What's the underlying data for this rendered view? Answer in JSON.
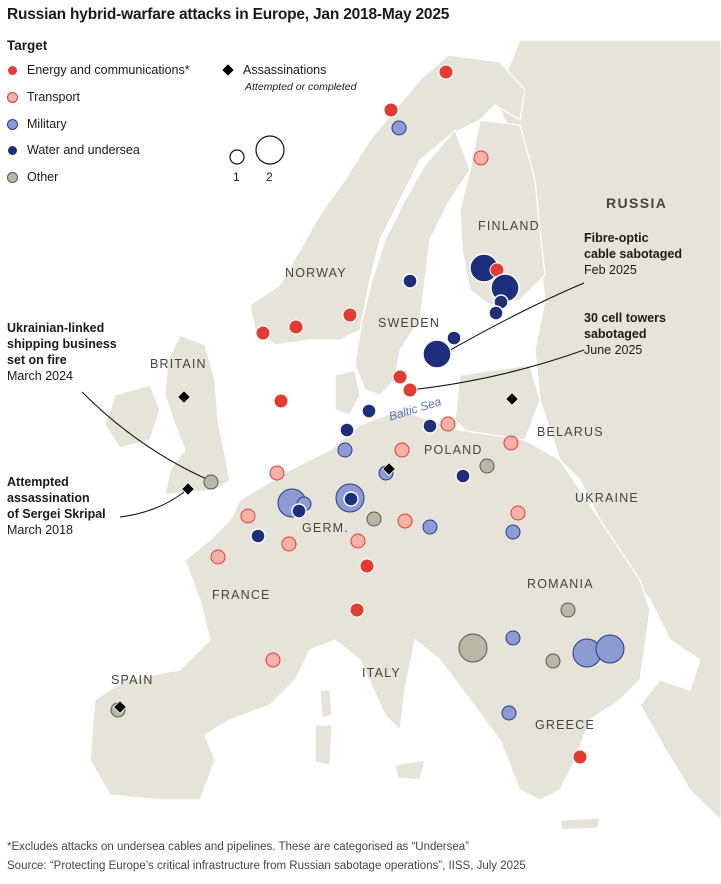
{
  "title": "Russian hybrid-warfare attacks in Europe, Jan 2018-May 2025",
  "legend": {
    "heading": "Target",
    "categories": [
      {
        "key": "energy",
        "label": "Energy and communications*",
        "color": "#e03c31"
      },
      {
        "key": "transport",
        "label": "Transport",
        "color": "#f6b2a6"
      },
      {
        "key": "military",
        "label": "Military",
        "color": "#8c9bd2"
      },
      {
        "key": "water",
        "label": "Water and undersea",
        "color": "#1f2e7a"
      },
      {
        "key": "other",
        "label": "Other",
        "color": "#b9b8a4"
      }
    ],
    "assassinations_label": "Assassinations",
    "assassinations_sub": "Attempted or completed",
    "size_values": [
      "1",
      "2"
    ]
  },
  "countries": {
    "russia": "RUSSIA",
    "finland": "FINLAND",
    "norway": "NORWAY",
    "sweden": "SWEDEN",
    "britain": "BRITAIN",
    "poland": "POLAND",
    "belarus": "BELARUS",
    "ukraine": "UKRAINE",
    "germany": "GERM.",
    "france": "FRANCE",
    "romania": "ROMANIA",
    "italy": "ITALY",
    "spain": "SPAIN",
    "greece": "GREECE"
  },
  "sea": "Baltic Sea",
  "annotations": {
    "fibre": {
      "bold": [
        "Fibre-optic",
        "cable sabotaged"
      ],
      "date": "Feb 2025"
    },
    "towers": {
      "bold": [
        "30 cell towers",
        "sabotaged"
      ],
      "date": "June 2025"
    },
    "shipping": {
      "bold": [
        "Ukrainian-linked",
        "shipping business",
        "set on fire"
      ],
      "date": "March 2024"
    },
    "skripal": {
      "bold": [
        "Attempted",
        "assassination",
        "of Sergei Skripal"
      ],
      "date": "March 2018"
    }
  },
  "footer": {
    "note": "*Excludes attacks on undersea cables and pipelines. These are categorised as “Undersea”",
    "source": "Source: “Protecting Europe’s critical infrastructure from Russian sabotage operations”, IISS, July 2025"
  },
  "map_data": {
    "attacks": [
      {
        "place": "Northern Norway",
        "category": "energy",
        "count": 1
      },
      {
        "place": "Northern Norway (coast)",
        "category": "energy",
        "count": 1
      },
      {
        "place": "Northern Norway (coast)",
        "category": "military",
        "count": 1
      },
      {
        "place": "Finnish Lapland",
        "category": "transport",
        "count": 1
      },
      {
        "place": "Gulf of Finland",
        "category": "water",
        "count": 2
      },
      {
        "place": "Helsinki",
        "category": "energy",
        "count": 1
      },
      {
        "place": "Gulf of Finland (east)",
        "category": "water",
        "count": 2
      },
      {
        "place": "Gulf of Finland (Estonia)",
        "category": "water",
        "count": 1
      },
      {
        "place": "Gulf of Finland (Estonia)",
        "category": "water",
        "count": 1
      },
      {
        "place": "Central Sweden",
        "category": "water",
        "count": 1
      },
      {
        "place": "Southern Norway (Bergen)",
        "category": "energy",
        "count": 1
      },
      {
        "place": "Southern Norway",
        "category": "energy",
        "count": 1
      },
      {
        "place": "Oslo",
        "category": "energy",
        "count": 1
      },
      {
        "place": "North Sea",
        "category": "energy",
        "count": 1
      },
      {
        "place": "Gotland",
        "category": "water",
        "count": 2
      },
      {
        "place": "Baltic Sea (Aland)",
        "category": "water",
        "count": 1
      },
      {
        "place": "Southern Sweden",
        "category": "energy",
        "count": 1
      },
      {
        "place": "Southern Sweden",
        "category": "energy",
        "count": 1
      },
      {
        "place": "Bornholm",
        "category": "water",
        "count": 1
      },
      {
        "place": "Baltic Sea (south)",
        "category": "water",
        "count": 1
      },
      {
        "place": "Denmark",
        "category": "water",
        "count": 1
      },
      {
        "place": "Lithuania",
        "category": "transport",
        "count": 1
      },
      {
        "place": "Lithuania (south)",
        "category": "transport",
        "count": 1
      },
      {
        "place": "Northern Germany",
        "category": "military",
        "count": 1
      },
      {
        "place": "Hamburg area",
        "category": "transport",
        "count": 1
      },
      {
        "place": "Western Poland",
        "category": "transport",
        "count": 1
      },
      {
        "place": "Berlin area",
        "category": "military",
        "count": 1
      },
      {
        "place": "Warsaw",
        "category": "other",
        "count": 1
      },
      {
        "place": "Eastern Poland",
        "category": "water",
        "count": 1
      },
      {
        "place": "London",
        "category": "other",
        "count": 1
      },
      {
        "place": "Netherlands",
        "category": "military",
        "count": 2
      },
      {
        "place": "Netherlands",
        "category": "military",
        "count": 1
      },
      {
        "place": "Netherlands",
        "category": "water",
        "count": 1
      },
      {
        "place": "Central Germany",
        "category": "military",
        "count": 2
      },
      {
        "place": "Central Germany",
        "category": "water",
        "count": 1
      },
      {
        "place": "Belgium",
        "category": "transport",
        "count": 1
      },
      {
        "place": "Germany",
        "category": "other",
        "count": 1
      },
      {
        "place": "Germany (east)",
        "category": "transport",
        "count": 1
      },
      {
        "place": "Southern Poland",
        "category": "military",
        "count": 1
      },
      {
        "place": "Northern France",
        "category": "water",
        "count": 1
      },
      {
        "place": "Germany (south)",
        "category": "transport",
        "count": 1
      },
      {
        "place": "Bavaria",
        "category": "transport",
        "count": 1
      },
      {
        "place": "Western Ukraine border",
        "category": "transport",
        "count": 1
      },
      {
        "place": "Eastern Poland",
        "category": "military",
        "count": 1
      },
      {
        "place": "France",
        "category": "transport",
        "count": 1
      },
      {
        "place": "Southern Germany",
        "category": "energy",
        "count": 1
      },
      {
        "place": "Northern Italy",
        "category": "energy",
        "count": 1
      },
      {
        "place": "Southern France",
        "category": "transport",
        "count": 1
      },
      {
        "place": "Romania",
        "category": "other",
        "count": 1
      },
      {
        "place": "Serbia",
        "category": "other",
        "count": 2
      },
      {
        "place": "Serbia (east)",
        "category": "military",
        "count": 1
      },
      {
        "place": "Bulgaria",
        "category": "other",
        "count": 1
      },
      {
        "place": "Bulgaria",
        "category": "military",
        "count": 2
      },
      {
        "place": "Bulgaria",
        "category": "military",
        "count": 2
      },
      {
        "place": "Albania",
        "category": "military",
        "count": 1
      },
      {
        "place": "Greece",
        "category": "energy",
        "count": 1
      },
      {
        "place": "Spain",
        "category": "other",
        "count": 1
      }
    ],
    "assassinations": [
      {
        "place": "Britain (north)"
      },
      {
        "place": "Salisbury"
      },
      {
        "place": "Berlin"
      },
      {
        "place": "Lithuania"
      },
      {
        "place": "Spain"
      }
    ]
  }
}
